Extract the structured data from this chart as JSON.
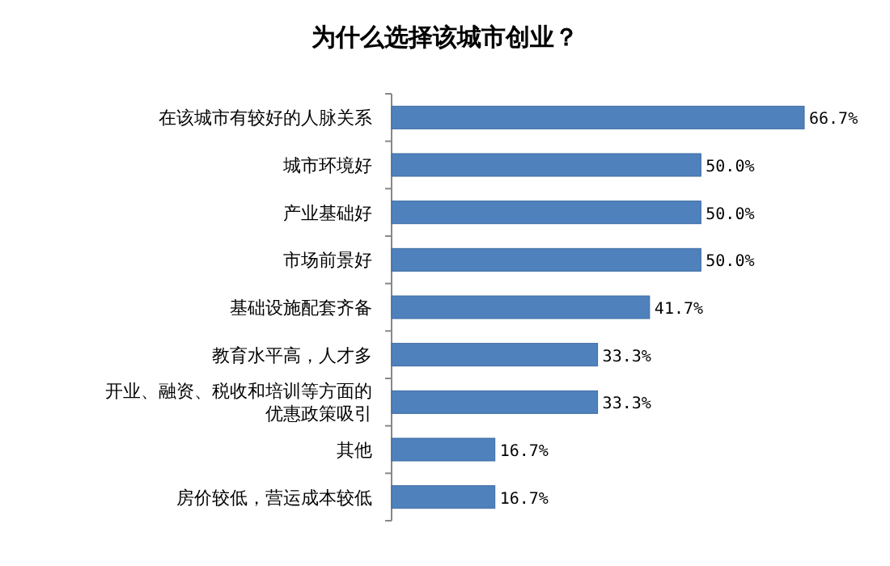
{
  "chart_data": {
    "type": "bar",
    "orientation": "horizontal",
    "title": "为什么选择该城市创业？",
    "categories": [
      "在该城市有较好的人脉关系",
      "城市环境好",
      "产业基础好",
      "市场前景好",
      "基础设施配套齐备",
      "教育水平高，人才多",
      "开业、融资、税收和培训等方面的优惠政策吸引",
      "其他",
      "房价较低，营运成本较低"
    ],
    "values": [
      66.7,
      50.0,
      50.0,
      50.0,
      41.7,
      33.3,
      33.3,
      16.7,
      16.7
    ],
    "value_labels": [
      "66.7%",
      "50.0%",
      "50.0%",
      "50.0%",
      "41.7%",
      "33.3%",
      "33.3%",
      "16.7%",
      "16.7%"
    ],
    "color": "#4f81bd",
    "grid": false
  }
}
